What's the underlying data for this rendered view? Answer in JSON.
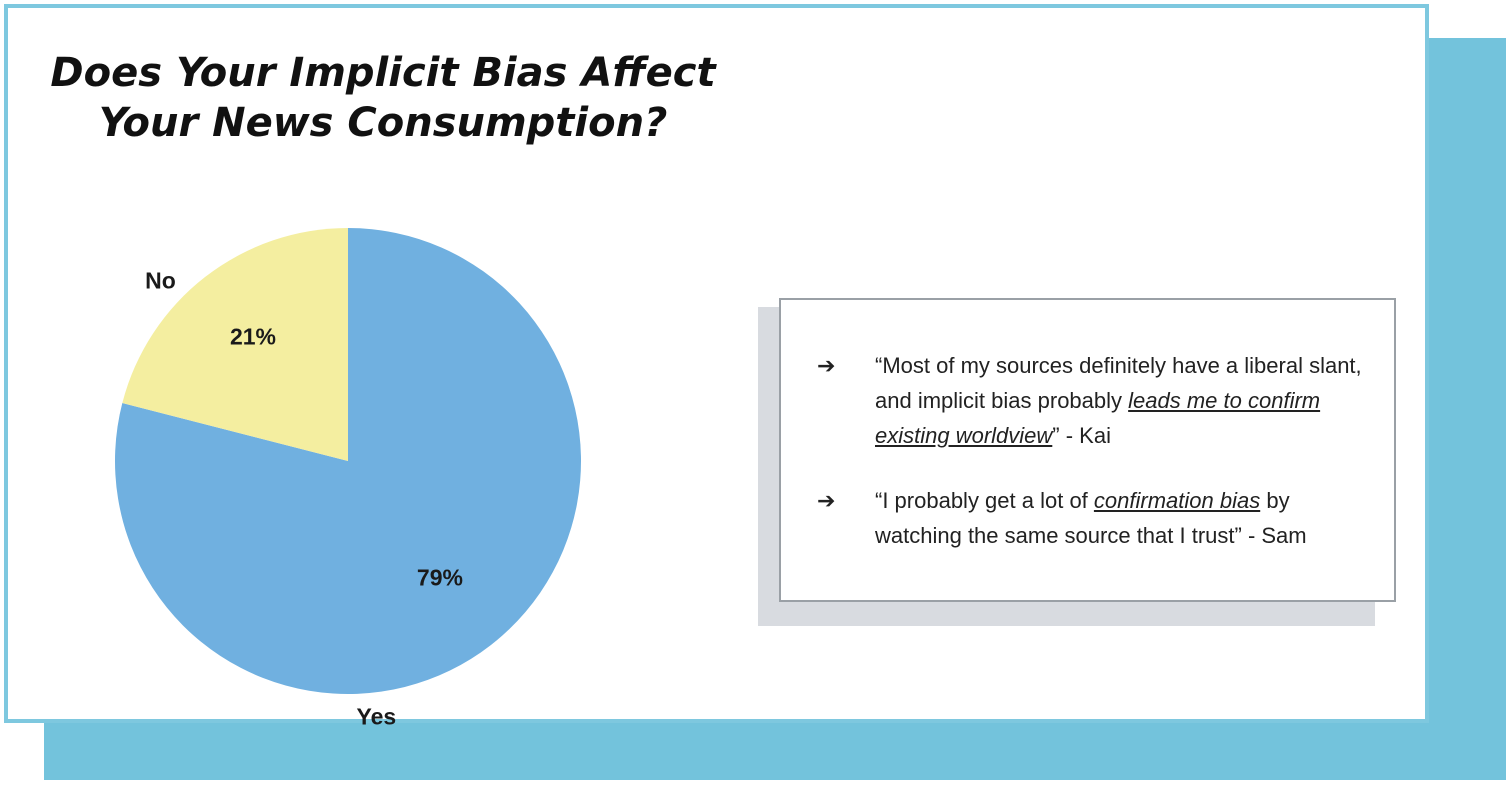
{
  "title_lines": [
    "Does Your Implicit Bias Affect",
    "Your News Consumption?"
  ],
  "colors": {
    "background_accent": "#73c3dc",
    "slide_border": "#7ec8df",
    "yes_slice": "#70b0e0",
    "no_slice": "#f4eea0"
  },
  "chart_data": {
    "type": "pie",
    "title": "Does Your Implicit Bias Affect Your News Consumption?",
    "categories": [
      "Yes",
      "No"
    ],
    "values": [
      79,
      21
    ],
    "value_labels": [
      "79%",
      "21%"
    ],
    "colors": [
      "#70b0e0",
      "#f4eea0"
    ]
  },
  "quotes": [
    {
      "arrow": "➔",
      "before": "“Most of my sources definitely have a liberal slant, and implicit bias probably ",
      "emphasis": "leads me to confirm existing worldview",
      "after": "” - Kai"
    },
    {
      "arrow": "➔",
      "before": "“I probably get a lot of ",
      "emphasis": "confirmation bias",
      "after": " by watching the same source that I trust” - Sam"
    }
  ]
}
